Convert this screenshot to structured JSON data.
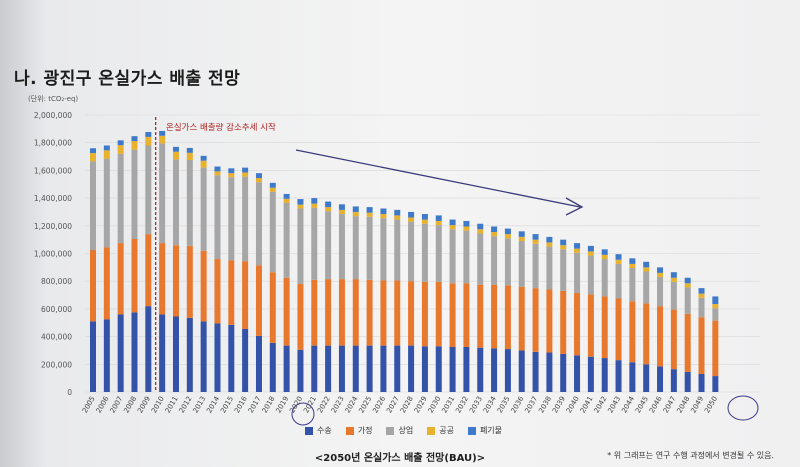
{
  "page": {
    "title": "나. 광진구 온실가스 배출 전망",
    "unit": "(단위: tCO₂-eq)",
    "annotation": "온실가스 배출량 감소추세 시작",
    "caption": "<2050년 온실가스 배출 전망(BAU)>",
    "note": "* 위 그래프는 연구 수행 과정에서 변경될 수 있음."
  },
  "colors": {
    "수송": "#3352a8",
    "가정": "#e8782e",
    "상업": "#a6a6a6",
    "공공": "#e8b12e",
    "폐기물": "#3f79c9",
    "annotation": "#b02525",
    "arrow": "#3a3b7a",
    "circle": "#3a3a8a"
  },
  "chart_data": {
    "type": "bar",
    "stacked": true,
    "ylim": [
      0,
      2000000
    ],
    "yticks": [
      "0",
      "200,000",
      "400,000",
      "600,000",
      "800,000",
      "1,000,000",
      "1,200,000",
      "1,400,000",
      "1,600,000",
      "1,800,000",
      "2,000,000"
    ],
    "grid": true,
    "legend_position": "bottom",
    "categories": [
      "2005",
      "2006",
      "2007",
      "2008",
      "2009",
      "2010",
      "2011",
      "2012",
      "2013",
      "2014",
      "2015",
      "2016",
      "2017",
      "2018",
      "2019",
      "2020",
      "2021",
      "2022",
      "2023",
      "2024",
      "2025",
      "2026",
      "2027",
      "2028",
      "2029",
      "2030",
      "2031",
      "2032",
      "2033",
      "2034",
      "2035",
      "2036",
      "2037",
      "2038",
      "2039",
      "2040",
      "2041",
      "2042",
      "2043",
      "2044",
      "2045",
      "2046",
      "2047",
      "2048",
      "2049",
      "2050"
    ],
    "series": [
      {
        "name": "수송",
        "values": [
          510000,
          525000,
          560000,
          575000,
          620000,
          560000,
          545000,
          535000,
          510000,
          495000,
          485000,
          455000,
          405000,
          355000,
          335000,
          305000,
          335000,
          335000,
          335000,
          335000,
          335000,
          335000,
          335000,
          335000,
          330000,
          330000,
          325000,
          325000,
          320000,
          315000,
          310000,
          300000,
          290000,
          285000,
          275000,
          265000,
          255000,
          245000,
          230000,
          215000,
          200000,
          185000,
          165000,
          145000,
          130000,
          115000
        ]
      },
      {
        "name": "가정",
        "values": [
          515000,
          520000,
          515000,
          530000,
          520000,
          515000,
          515000,
          520000,
          510000,
          465000,
          465000,
          490000,
          510000,
          510000,
          490000,
          475000,
          475000,
          480000,
          480000,
          480000,
          475000,
          470000,
          470000,
          465000,
          465000,
          465000,
          460000,
          460000,
          455000,
          460000,
          460000,
          460000,
          460000,
          455000,
          455000,
          450000,
          450000,
          445000,
          445000,
          440000,
          440000,
          435000,
          430000,
          420000,
          410000,
          400000
        ]
      },
      {
        "name": "상업",
        "values": [
          640000,
          640000,
          645000,
          645000,
          640000,
          720000,
          620000,
          620000,
          600000,
          605000,
          600000,
          610000,
          600000,
          580000,
          540000,
          545000,
          520000,
          490000,
          470000,
          455000,
          455000,
          450000,
          440000,
          430000,
          420000,
          410000,
          390000,
          380000,
          370000,
          350000,
          340000,
          330000,
          320000,
          310000,
          300000,
          290000,
          280000,
          270000,
          250000,
          240000,
          230000,
          210000,
          200000,
          190000,
          140000,
          90000
        ]
      },
      {
        "name": "공공",
        "values": [
          60000,
          60000,
          62000,
          62000,
          62000,
          55000,
          55000,
          52000,
          50000,
          28000,
          30000,
          30000,
          30000,
          30000,
          30000,
          28000,
          30000,
          30000,
          30000,
          30000,
          30000,
          30000,
          30000,
          30000,
          30000,
          30000,
          30000,
          30000,
          30000,
          30000,
          30000,
          30000,
          30000,
          30000,
          30000,
          30000,
          30000,
          30000,
          30000,
          30000,
          30000,
          30000,
          30000,
          30000,
          30000,
          30000
        ]
      },
      {
        "name": "폐기물",
        "values": [
          35000,
          35000,
          35000,
          35000,
          35000,
          35000,
          35000,
          35000,
          35000,
          35000,
          35000,
          35000,
          35000,
          35000,
          35000,
          40000,
          40000,
          40000,
          40000,
          40000,
          40000,
          40000,
          40000,
          40000,
          40000,
          40000,
          40000,
          40000,
          40000,
          40000,
          40000,
          40000,
          40000,
          40000,
          40000,
          40000,
          40000,
          40000,
          40000,
          40000,
          40000,
          40000,
          40000,
          40000,
          40000,
          55000
        ]
      }
    ]
  }
}
